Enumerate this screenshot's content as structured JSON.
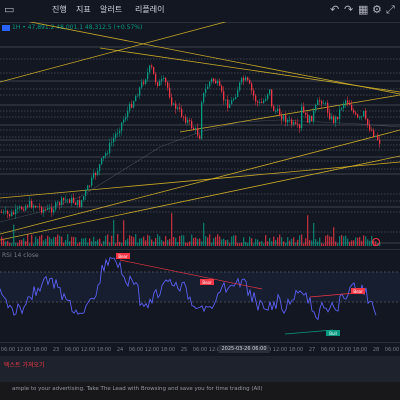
{
  "toolbar": {
    "item1": "진행",
    "item2": "지표",
    "item3": "알러트",
    "item4": "리플레이"
  },
  "legend": {
    "text": "1H • 47,891.2 48,001.1 48,312.5 (+0.57%)"
  },
  "time_axis": {
    "ticks": [
      "06:00",
      "12:00",
      "18:00",
      "23",
      "06:00",
      "12:00",
      "18:00",
      "24",
      "06:00",
      "12:00",
      "18:00",
      "25",
      "06:00",
      "12:00",
      "18:00",
      "26",
      "06:00",
      "12:00",
      "18:00",
      "27",
      "06:00",
      "12:00",
      "18:00",
      "28",
      "06:00"
    ],
    "cursor_label": "2025-03-26 06:00"
  },
  "rsi": {
    "label": "RSI 14 close",
    "markers": [
      "Bear",
      "Bear",
      "Bear",
      "Bull"
    ]
  },
  "bottom": {
    "red_line": "텍스트 가져오기",
    "footer": "ample to your advertising. Take The Lead with Browsing and save you for time trading (All)"
  },
  "colors": {
    "up": "#089981",
    "down": "#f23645",
    "trend": "#e6c229",
    "rsi": "#5b5ff2",
    "bear": "#f23645",
    "bull": "#089981"
  }
}
